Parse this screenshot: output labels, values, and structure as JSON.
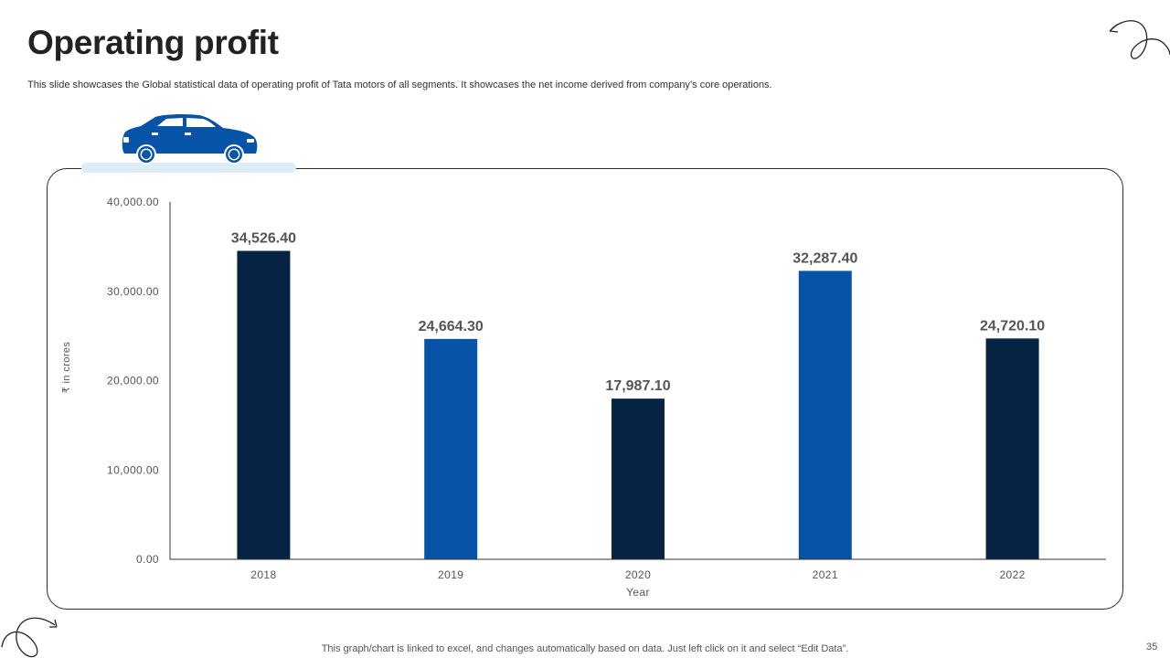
{
  "slide": {
    "title": "Operating profit",
    "subtitle": "This slide showcases the Global statistical data of operating profit of Tata motors of all segments. It showcases the net income derived from company’s core operations.",
    "footnote": "This graph/chart is linked to excel, and changes automatically based on data. Just left click on it and select “Edit Data”.",
    "page_number": "35",
    "icons": {
      "car": "car-icon",
      "swirl_top": "swirl-arrow-icon",
      "swirl_bottom": "swirl-arrow-icon"
    }
  },
  "colors": {
    "dark_navy": "#062343",
    "royal_blue": "#0753a8",
    "car_base": "#dcecf8",
    "text_gray": "#555555"
  },
  "chart_data": {
    "type": "bar",
    "title": "",
    "xlabel": "Year",
    "ylabel": "₹ in crores",
    "categories": [
      "2018",
      "2019",
      "2020",
      "2021",
      "2022"
    ],
    "values": [
      34526.4,
      24664.3,
      17987.1,
      32287.4,
      24720.1
    ],
    "data_labels": [
      "34,526.40",
      "24,664.30",
      "17,987.10",
      "32,287.40",
      "24,720.10"
    ],
    "bar_colors": [
      "#062343",
      "#0753a8",
      "#062343",
      "#0753a8",
      "#062343"
    ],
    "ylim": [
      0,
      40000
    ],
    "yticks": [
      0,
      10000,
      20000,
      30000,
      40000
    ],
    "ytick_labels": [
      "0.00",
      "10,000.00",
      "20,000.00",
      "30,000.00",
      "40,000.00"
    ],
    "grid": false,
    "legend": "none"
  }
}
